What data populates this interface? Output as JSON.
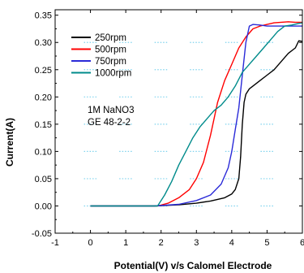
{
  "chart_data": {
    "type": "line",
    "xlabel": "Potential(V) v/s Calomel Electrode",
    "ylabel": "Current(A)",
    "xlim": [
      -1,
      6
    ],
    "ylim": [
      -0.05,
      0.36
    ],
    "x_ticks": [
      "-1",
      "0",
      "1",
      "2",
      "3",
      "4",
      "5",
      "6"
    ],
    "y_ticks": [
      "-0.05",
      "0.00",
      "0.05",
      "0.10",
      "0.15",
      "0.20",
      "0.25",
      "0.30",
      "0.35"
    ],
    "annotations": [
      "1M NaNO3",
      "GE 48-2-2"
    ],
    "legend_position": "top-left",
    "series": [
      {
        "name": "250rpm",
        "color": "#000000",
        "x": [
          0,
          1.8,
          2.5,
          3.0,
          3.4,
          3.8,
          4.0,
          4.1,
          4.2,
          4.25,
          4.3,
          4.35,
          4.4,
          4.5,
          4.6,
          4.8,
          5.0,
          5.2,
          5.4,
          5.6,
          5.8,
          5.9,
          6.0
        ],
        "y": [
          0.0,
          0.0,
          0.002,
          0.005,
          0.009,
          0.015,
          0.022,
          0.03,
          0.05,
          0.09,
          0.15,
          0.19,
          0.205,
          0.215,
          0.22,
          0.23,
          0.24,
          0.25,
          0.265,
          0.28,
          0.29,
          0.303,
          0.302
        ]
      },
      {
        "name": "500rpm",
        "color": "#ff0000",
        "x": [
          0,
          1.9,
          2.2,
          2.5,
          2.8,
          3.0,
          3.2,
          3.4,
          3.6,
          3.8,
          4.0,
          4.2,
          4.4,
          4.6,
          4.8,
          5.0,
          5.2,
          5.4,
          5.6,
          5.8,
          6.0
        ],
        "y": [
          0.0,
          0.0,
          0.005,
          0.015,
          0.03,
          0.05,
          0.08,
          0.13,
          0.19,
          0.23,
          0.26,
          0.29,
          0.31,
          0.325,
          0.33,
          0.333,
          0.336,
          0.337,
          0.338,
          0.337,
          0.337
        ]
      },
      {
        "name": "750rpm",
        "color": "#2a2ad8",
        "x": [
          0,
          1.8,
          2.5,
          3.0,
          3.4,
          3.7,
          3.9,
          4.0,
          4.1,
          4.2,
          4.3,
          4.4,
          4.5,
          4.6,
          4.8,
          5.0,
          5.5,
          6.0
        ],
        "y": [
          0.0,
          0.0,
          0.003,
          0.01,
          0.02,
          0.04,
          0.07,
          0.1,
          0.14,
          0.18,
          0.24,
          0.3,
          0.33,
          0.333,
          0.332,
          0.33,
          0.33,
          0.33
        ]
      },
      {
        "name": "1000rpm",
        "color": "#008b8b",
        "x": [
          0,
          1.9,
          2.1,
          2.3,
          2.5,
          2.7,
          2.9,
          3.1,
          3.3,
          3.5,
          3.7,
          3.9,
          4.1,
          4.3,
          4.5,
          4.7,
          4.9,
          5.1,
          5.3,
          5.5,
          5.7,
          5.9,
          6.0
        ],
        "y": [
          0.0,
          0.0,
          0.02,
          0.045,
          0.075,
          0.1,
          0.125,
          0.145,
          0.16,
          0.175,
          0.185,
          0.2,
          0.22,
          0.245,
          0.26,
          0.275,
          0.29,
          0.305,
          0.32,
          0.33,
          0.332,
          0.335,
          0.336
        ]
      }
    ]
  }
}
